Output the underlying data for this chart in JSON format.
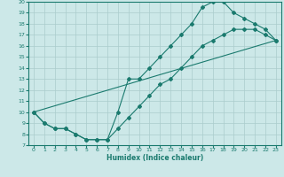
{
  "xlabel": "Humidex (Indice chaleur)",
  "xlim": [
    -0.5,
    23.5
  ],
  "ylim": [
    7,
    20
  ],
  "xticks": [
    0,
    1,
    2,
    3,
    4,
    5,
    6,
    7,
    8,
    9,
    10,
    11,
    12,
    13,
    14,
    15,
    16,
    17,
    18,
    19,
    20,
    21,
    22,
    23
  ],
  "yticks": [
    7,
    8,
    9,
    10,
    11,
    12,
    13,
    14,
    15,
    16,
    17,
    18,
    19,
    20
  ],
  "bg_color": "#cce8e8",
  "line_color": "#1a7a6e",
  "grid_color": "#aacccc",
  "line1_x": [
    0,
    1,
    2,
    3,
    4,
    5,
    6,
    7,
    8,
    9,
    10,
    11,
    12,
    13,
    14,
    15,
    16,
    17,
    18,
    19,
    20,
    21,
    22,
    23
  ],
  "line1_y": [
    10,
    9,
    8.5,
    8.5,
    8,
    7.5,
    7.5,
    7.5,
    10,
    13,
    13,
    14,
    15,
    16,
    17,
    18,
    19.5,
    20,
    20,
    19,
    18.5,
    18,
    17.5,
    16.5
  ],
  "line2_x": [
    0,
    1,
    2,
    3,
    4,
    5,
    6,
    7,
    8,
    9,
    10,
    11,
    12,
    13,
    14,
    15,
    16,
    17,
    18,
    19,
    20,
    21,
    22,
    23
  ],
  "line2_y": [
    10,
    9,
    8.5,
    8.5,
    8,
    7.5,
    7.5,
    7.5,
    8.5,
    9.5,
    10.5,
    11.5,
    12.5,
    13,
    14,
    15,
    16,
    16.5,
    17,
    17.5,
    17.5,
    17.5,
    17,
    16.5
  ],
  "line3_x": [
    0,
    23
  ],
  "line3_y": [
    10,
    16.5
  ]
}
